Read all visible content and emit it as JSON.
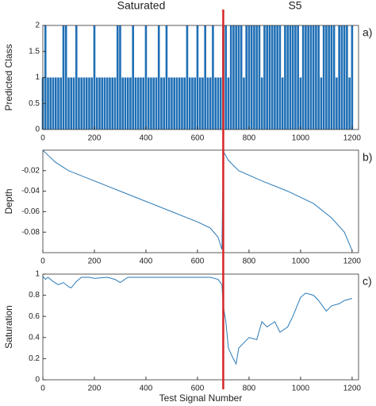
{
  "headers": [
    "Saturated",
    "S5"
  ],
  "divider": {
    "x": 700,
    "color": "#d62728"
  },
  "x_label": "Test Signal Number",
  "chart_data": [
    {
      "type": "bar",
      "panel_label": "a)",
      "y_label": "Predicted Class",
      "color": "#1f6fb5",
      "x": [
        0,
        10,
        20,
        30,
        40,
        50,
        60,
        70,
        80,
        90,
        100,
        110,
        120,
        130,
        140,
        150,
        160,
        170,
        180,
        190,
        200,
        210,
        220,
        230,
        240,
        250,
        260,
        270,
        280,
        290,
        300,
        310,
        320,
        330,
        340,
        350,
        360,
        370,
        380,
        390,
        400,
        410,
        420,
        430,
        440,
        450,
        460,
        470,
        480,
        490,
        500,
        510,
        520,
        530,
        540,
        550,
        560,
        570,
        580,
        590,
        600,
        610,
        620,
        630,
        640,
        650,
        660,
        670,
        680,
        690,
        700,
        710,
        720,
        730,
        740,
        750,
        760,
        770,
        780,
        790,
        800,
        810,
        820,
        830,
        840,
        850,
        860,
        870,
        880,
        890,
        900,
        910,
        920,
        930,
        940,
        950,
        960,
        970,
        980,
        990,
        1000,
        1010,
        1020,
        1030,
        1040,
        1050,
        1060,
        1070,
        1080,
        1090,
        1100,
        1110,
        1120,
        1130,
        1140,
        1150,
        1160,
        1170,
        1180,
        1190,
        1200
      ],
      "values": [
        1,
        2,
        1,
        1,
        1,
        1,
        1,
        1,
        2,
        2,
        1,
        1,
        1,
        2,
        1,
        1,
        1,
        1,
        1,
        1,
        2,
        1,
        1,
        1,
        1,
        1,
        1,
        1,
        1,
        2,
        2,
        1,
        1,
        1,
        1,
        2,
        1,
        1,
        1,
        1,
        2,
        1,
        1,
        1,
        1,
        2,
        1,
        1,
        2,
        1,
        1,
        1,
        1,
        1,
        1,
        1,
        2,
        1,
        1,
        1,
        2,
        1,
        1,
        2,
        1,
        1,
        2,
        1,
        1,
        1,
        2,
        2,
        1,
        2,
        2,
        2,
        2,
        2,
        1,
        2,
        2,
        2,
        2,
        2,
        2,
        1,
        2,
        2,
        2,
        2,
        2,
        2,
        2,
        1,
        2,
        2,
        2,
        2,
        2,
        2,
        1,
        2,
        2,
        2,
        2,
        2,
        2,
        2,
        1,
        2,
        2,
        2,
        2,
        2,
        1,
        2,
        2,
        2,
        2,
        1,
        2
      ],
      "xlim": [
        0,
        1225
      ],
      "xticks": [
        0,
        200,
        400,
        600,
        800,
        1000,
        1200
      ],
      "ylim": [
        0,
        2
      ],
      "yticks": [
        0,
        0.5,
        1,
        1.5,
        2
      ]
    },
    {
      "type": "line",
      "panel_label": "b)",
      "y_label": "Depth",
      "color": "#2a7ab8",
      "x": [
        0,
        20,
        50,
        100,
        200,
        300,
        400,
        500,
        600,
        650,
        680,
        695,
        700,
        720,
        760,
        850,
        950,
        1050,
        1120,
        1170,
        1200
      ],
      "values": [
        0,
        -0.005,
        -0.012,
        -0.02,
        -0.03,
        -0.04,
        -0.05,
        -0.06,
        -0.07,
        -0.076,
        -0.085,
        -0.097,
        -0.001,
        -0.01,
        -0.02,
        -0.03,
        -0.04,
        -0.052,
        -0.066,
        -0.08,
        -0.098
      ],
      "xlim": [
        0,
        1225
      ],
      "xticks": [
        0,
        200,
        400,
        600,
        800,
        1000,
        1200
      ],
      "ylim": [
        -0.1,
        0
      ],
      "yticks": [
        -0.08,
        -0.06,
        -0.04,
        -0.02
      ]
    },
    {
      "type": "line",
      "panel_label": "c)",
      "y_label": "Saturation",
      "color": "#2a7ab8",
      "x": [
        0,
        10,
        20,
        40,
        60,
        80,
        100,
        110,
        130,
        150,
        180,
        200,
        250,
        280,
        300,
        330,
        360,
        400,
        430,
        450,
        500,
        550,
        600,
        650,
        680,
        695,
        700,
        710,
        720,
        735,
        750,
        760,
        780,
        800,
        830,
        850,
        870,
        900,
        920,
        950,
        970,
        1000,
        1020,
        1050,
        1070,
        1100,
        1120,
        1150,
        1170,
        1200
      ],
      "values": [
        0.98,
        0.95,
        0.97,
        0.93,
        0.9,
        0.92,
        0.88,
        0.87,
        0.93,
        0.97,
        0.97,
        0.96,
        0.97,
        0.95,
        0.92,
        0.97,
        0.97,
        0.97,
        0.97,
        0.97,
        0.97,
        0.97,
        0.97,
        0.97,
        0.95,
        0.9,
        0.7,
        0.55,
        0.3,
        0.22,
        0.15,
        0.3,
        0.35,
        0.4,
        0.38,
        0.55,
        0.5,
        0.55,
        0.45,
        0.5,
        0.6,
        0.78,
        0.82,
        0.8,
        0.75,
        0.65,
        0.7,
        0.72,
        0.75,
        0.77
      ],
      "xlim": [
        0,
        1225
      ],
      "xticks": [
        0,
        200,
        400,
        600,
        800,
        1000,
        1200
      ],
      "ylim": [
        0,
        1
      ],
      "yticks": [
        0,
        0.2,
        0.4,
        0.6,
        0.8,
        1
      ]
    }
  ]
}
